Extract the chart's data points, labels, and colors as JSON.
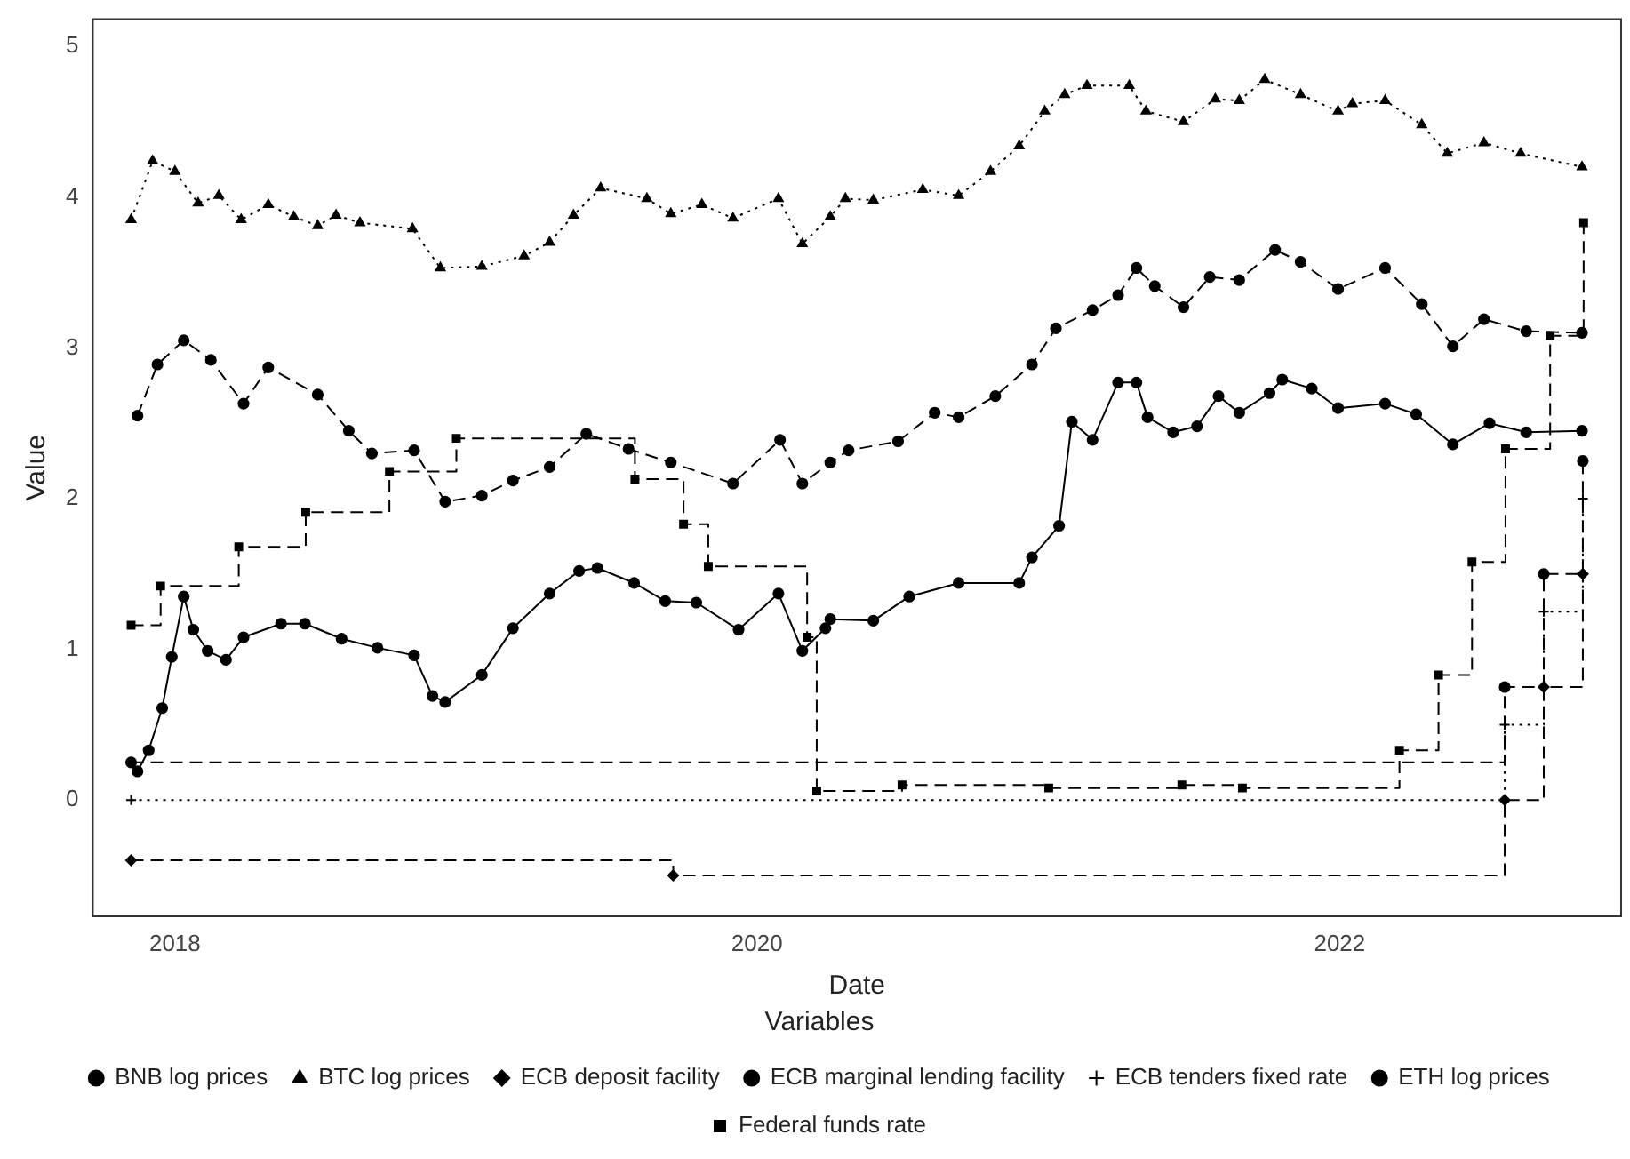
{
  "chart_data": {
    "type": "line",
    "xlabel": "Date",
    "ylabel": "Value",
    "legend_title": "Variables",
    "legend": "bottom",
    "grid": false,
    "xlim": [
      "2017-09-20",
      "2022-12-20"
    ],
    "xticks": [
      {
        "value": "2018-01-01",
        "label": "2018"
      },
      {
        "value": "2020-01-01",
        "label": "2020"
      },
      {
        "value": "2022-01-01",
        "label": "2022"
      }
    ],
    "ylim": [
      -0.77,
      5.18
    ],
    "yticks": [
      0,
      1,
      2,
      3,
      4,
      5
    ],
    "series": [
      {
        "name": "BNB log prices",
        "type": "line",
        "color": "#000000",
        "marker": "circle",
        "line_style": "solid",
        "x": [
          "2017-11-15",
          "2017-11-29",
          "2017-12-16",
          "2017-12-28",
          "2018-01-12",
          "2018-01-24",
          "2018-02-11",
          "2018-03-06",
          "2018-03-28",
          "2018-05-14",
          "2018-06-13",
          "2018-07-29",
          "2018-09-12",
          "2018-10-28",
          "2018-11-20",
          "2018-12-06",
          "2019-01-21",
          "2019-03-01",
          "2019-04-16",
          "2019-05-23",
          "2019-06-15",
          "2019-07-31",
          "2019-09-08",
          "2019-10-17",
          "2019-12-09",
          "2020-01-28",
          "2020-02-27",
          "2020-03-27",
          "2020-04-02",
          "2020-05-26",
          "2020-07-10",
          "2020-09-10",
          "2020-11-25",
          "2020-12-11",
          "2021-01-14",
          "2021-01-30",
          "2021-02-25",
          "2021-03-29",
          "2021-04-21",
          "2021-05-05",
          "2021-06-06",
          "2021-07-06",
          "2021-08-02",
          "2021-08-28",
          "2021-10-05",
          "2021-10-21",
          "2021-11-27",
          "2021-12-30",
          "2022-02-27",
          "2022-04-07",
          "2022-05-23",
          "2022-07-08",
          "2022-08-23",
          "2022-11-01"
        ],
        "values": [
          0.19,
          0.33,
          0.61,
          0.95,
          1.35,
          1.13,
          0.99,
          0.93,
          1.08,
          1.17,
          1.17,
          1.07,
          1.01,
          0.96,
          0.69,
          0.65,
          0.83,
          1.14,
          1.37,
          1.52,
          1.54,
          1.44,
          1.32,
          1.31,
          1.13,
          1.37,
          0.99,
          1.14,
          1.2,
          1.19,
          1.35,
          1.44,
          1.44,
          1.61,
          1.82,
          2.51,
          2.39,
          2.77,
          2.77,
          2.54,
          2.44,
          2.48,
          2.68,
          2.57,
          2.7,
          2.79,
          2.73,
          2.6,
          2.63,
          2.56,
          2.36,
          2.5,
          2.44,
          2.45
        ]
      },
      {
        "name": "BTC log prices",
        "type": "line",
        "color": "#000000",
        "marker": "triangle",
        "line_style": "dotted",
        "x": [
          "2017-11-07",
          "2017-12-04",
          "2018-01-01",
          "2018-01-30",
          "2018-02-25",
          "2018-03-25",
          "2018-04-28",
          "2018-05-30",
          "2018-06-29",
          "2018-07-22",
          "2018-08-21",
          "2018-10-26",
          "2018-11-30",
          "2019-01-21",
          "2019-03-15",
          "2019-04-16",
          "2019-05-16",
          "2019-06-19",
          "2019-08-16",
          "2019-09-15",
          "2019-10-24",
          "2019-12-02",
          "2020-01-28",
          "2020-02-27",
          "2020-04-02",
          "2020-04-21",
          "2020-05-26",
          "2020-07-27",
          "2020-09-10",
          "2020-10-20",
          "2020-11-25",
          "2020-12-27",
          "2021-01-21",
          "2021-02-18",
          "2021-04-12",
          "2021-05-03",
          "2021-06-19",
          "2021-07-29",
          "2021-08-28",
          "2021-09-29",
          "2021-11-13",
          "2021-12-30",
          "2022-01-17",
          "2022-02-27",
          "2022-04-14",
          "2022-05-16",
          "2022-07-01",
          "2022-08-16",
          "2022-11-01"
        ],
        "values": [
          3.85,
          4.24,
          4.17,
          3.96,
          4.01,
          3.85,
          3.95,
          3.87,
          3.81,
          3.88,
          3.83,
          3.79,
          3.53,
          3.54,
          3.61,
          3.7,
          3.88,
          4.06,
          3.99,
          3.89,
          3.95,
          3.86,
          3.99,
          3.69,
          3.87,
          3.99,
          3.98,
          4.05,
          4.01,
          4.17,
          4.34,
          4.57,
          4.68,
          4.74,
          4.74,
          4.57,
          4.5,
          4.65,
          4.64,
          4.78,
          4.68,
          4.57,
          4.62,
          4.64,
          4.48,
          4.29,
          4.36,
          4.29,
          4.2
        ]
      },
      {
        "name": "ECB deposit facility",
        "type": "step",
        "color": "#000000",
        "marker": "diamond",
        "line_style": "dashed",
        "x": [
          "2017-11-07",
          "2019-09-18",
          "2022-07-27",
          "2022-09-14",
          "2022-11-02"
        ],
        "values": [
          -0.4,
          -0.5,
          0,
          0.75,
          1.5
        ]
      },
      {
        "name": "ECB marginal lending facility",
        "type": "step",
        "color": "#000000",
        "marker": "circle",
        "line_style": "dashed",
        "x": [
          "2017-11-07",
          "2022-07-27",
          "2022-09-14",
          "2022-11-02"
        ],
        "values": [
          0.25,
          0.75,
          1.5,
          2.25
        ]
      },
      {
        "name": "ECB tenders fixed rate",
        "type": "step",
        "color": "#000000",
        "marker": "cross",
        "line_style": "dotted",
        "x": [
          "2017-11-07",
          "2022-07-27",
          "2022-09-14",
          "2022-11-02"
        ],
        "values": [
          0,
          0.5,
          1.25,
          2
        ]
      },
      {
        "name": "ETH log prices",
        "type": "line",
        "color": "#000000",
        "marker": "circle",
        "line_style": "dashed",
        "x": [
          "2017-11-15",
          "2017-12-10",
          "2018-01-12",
          "2018-02-15",
          "2018-03-28",
          "2018-04-28",
          "2018-06-29",
          "2018-08-07",
          "2018-09-05",
          "2018-10-28",
          "2018-12-06",
          "2019-01-21",
          "2019-03-01",
          "2019-04-16",
          "2019-06-01",
          "2019-07-24",
          "2019-09-15",
          "2019-12-02",
          "2020-01-30",
          "2020-02-27",
          "2020-04-02",
          "2020-04-25",
          "2020-06-26",
          "2020-08-11",
          "2020-09-10",
          "2020-10-26",
          "2020-12-11",
          "2021-01-10",
          "2021-02-25",
          "2021-03-29",
          "2021-04-21",
          "2021-05-14",
          "2021-06-19",
          "2021-07-22",
          "2021-08-28",
          "2021-10-12",
          "2021-11-13",
          "2021-12-30",
          "2022-02-27",
          "2022-04-14",
          "2022-05-23",
          "2022-07-01",
          "2022-08-23",
          "2022-11-01"
        ],
        "values": [
          2.55,
          2.89,
          3.05,
          2.92,
          2.63,
          2.87,
          2.69,
          2.45,
          2.3,
          2.32,
          1.98,
          2.02,
          2.12,
          2.21,
          2.43,
          2.33,
          2.24,
          2.1,
          2.39,
          2.1,
          2.24,
          2.32,
          2.38,
          2.57,
          2.54,
          2.68,
          2.89,
          3.13,
          3.25,
          3.35,
          3.53,
          3.41,
          3.27,
          3.47,
          3.45,
          3.65,
          3.57,
          3.39,
          3.53,
          3.29,
          3.01,
          3.19,
          3.11,
          3.1
        ]
      },
      {
        "name": "Federal funds rate",
        "type": "step",
        "color": "#000000",
        "marker": "square",
        "line_style": "dashed",
        "x": [
          "2017-11-07",
          "2017-12-14",
          "2018-03-22",
          "2018-06-14",
          "2018-09-27",
          "2018-12-20",
          "2019-08-01",
          "2019-10-01",
          "2019-11-01",
          "2020-03-04",
          "2020-03-16",
          "2020-07-01",
          "2021-01-01",
          "2021-06-17",
          "2021-09-01",
          "2022-03-17",
          "2022-05-05",
          "2022-06-16",
          "2022-07-28",
          "2022-09-22",
          "2022-11-03"
        ],
        "values": [
          1.16,
          1.42,
          1.68,
          1.91,
          2.18,
          2.4,
          2.13,
          1.83,
          1.55,
          1.08,
          0.06,
          0.1,
          0.08,
          0.1,
          0.08,
          0.33,
          0.83,
          1.58,
          2.33,
          3.08,
          3.83
        ]
      }
    ]
  }
}
